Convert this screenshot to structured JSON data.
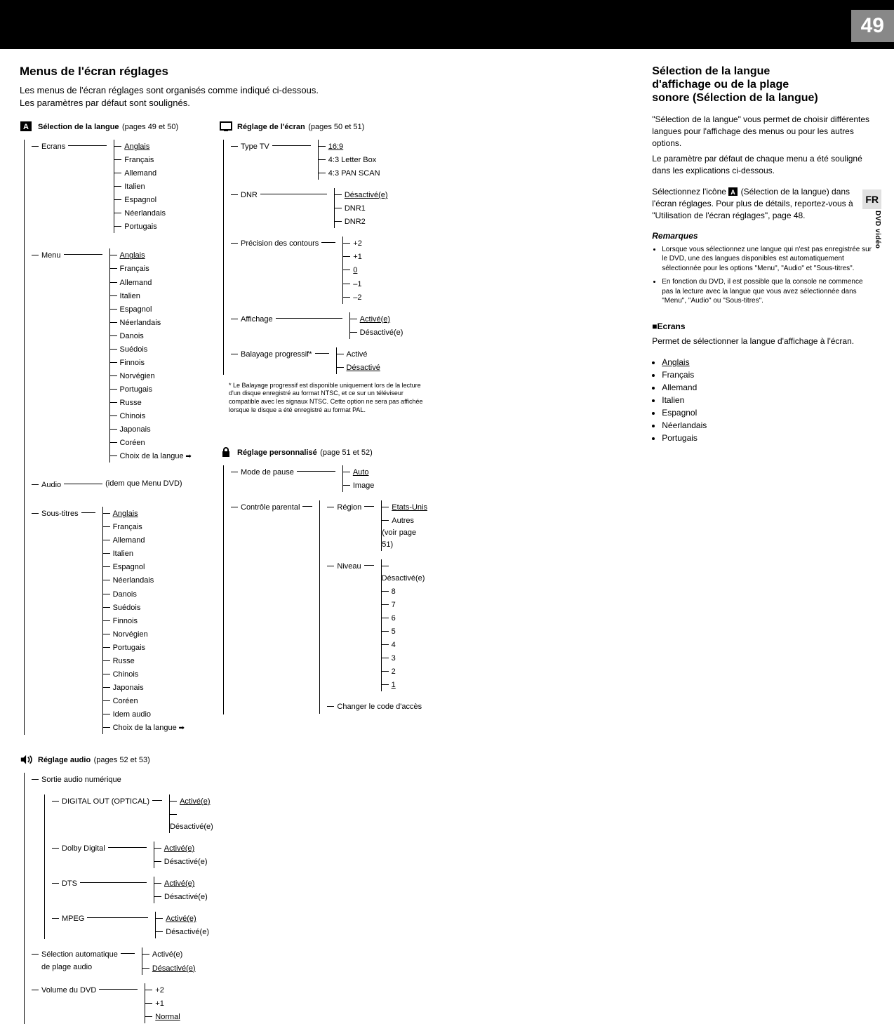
{
  "page_number": "49",
  "side_tab": "FR",
  "side_label": "DVD vidéo",
  "left": {
    "title": "Menus de l'écran réglages",
    "intro_line1": "Les menus de l'écran réglages sont organisés comme indiqué ci-dessous.",
    "intro_line2": "Les paramètres par défaut sont soulignés.",
    "section_langue": {
      "title": "Sélection de la langue",
      "pages": "(pages 49 et 50)"
    },
    "section_ecran": {
      "title": "Réglage de l'écran",
      "pages": "(pages 50 et 51)"
    },
    "section_audio": {
      "title": "Réglage audio",
      "pages": "(pages 52 et 53)"
    },
    "section_perso": {
      "title": "Réglage personnalisé",
      "pages": "(page 51 et 52)"
    },
    "langue": {
      "ecrans_label": "Ecrans",
      "ecrans": [
        "Anglais",
        "Français",
        "Allemand",
        "Italien",
        "Espagnol",
        "Néerlandais",
        "Portugais"
      ],
      "ecrans_default": 0,
      "menu_label": "Menu",
      "menu": [
        "Anglais",
        "Français",
        "Allemand",
        "Italien",
        "Espagnol",
        "Néerlandais",
        "Danois",
        "Suédois",
        "Finnois",
        "Norvégien",
        "Portugais",
        "Russe",
        "Chinois",
        "Japonais",
        "Coréen",
        "Choix de la langue"
      ],
      "menu_default": 0,
      "audio_label": "Audio",
      "audio_value": "(idem que Menu DVD)",
      "st_label": "Sous-titres",
      "st": [
        "Anglais",
        "Français",
        "Allemand",
        "Italien",
        "Espagnol",
        "Néerlandais",
        "Danois",
        "Suédois",
        "Finnois",
        "Norvégien",
        "Portugais",
        "Russe",
        "Chinois",
        "Japonais",
        "Coréen",
        "Idem audio",
        "Choix de la langue"
      ],
      "st_default": 0
    },
    "ecran": {
      "type_tv_label": "Type TV",
      "type_tv": [
        "16:9",
        "4:3 Letter Box",
        "4:3 PAN SCAN"
      ],
      "type_tv_default": 0,
      "dnr_label": "DNR",
      "dnr": [
        "Désactivé(e)",
        "DNR1",
        "DNR2"
      ],
      "dnr_default": 0,
      "precision_label": "Précision des contours",
      "precision": [
        "+2",
        "+1",
        "0",
        "–1",
        "–2"
      ],
      "precision_default": 2,
      "affichage_label": "Affichage",
      "affichage": [
        "Activé(e)",
        "Désactivé(e)"
      ],
      "affichage_default": 0,
      "balayage_label": "Balayage progressif*",
      "balayage": [
        "Activé",
        "Désactivé"
      ],
      "balayage_default": 1,
      "footnote": "Le Balayage progressif est disponible uniquement lors de la lecture d'un disque enregistré au format NTSC, et ce sur un téléviseur compatible avec les signaux NTSC. Cette option ne sera pas affichée lorsque le disque a été enregistré au format PAL."
    },
    "audio": {
      "sortie_label": "Sortie audio numérique",
      "digital_out_label": "DIGITAL OUT (OPTICAL)",
      "pair": [
        "Activé(e)",
        "Désactivé(e)"
      ],
      "dolby_label": "Dolby Digital",
      "dts_label": "DTS",
      "mpeg_label": "MPEG",
      "autoselect_label_l1": "Sélection automatique",
      "autoselect_label_l2": "de plage audio",
      "volume_label": "Volume du DVD",
      "volume": [
        "+2",
        "+1",
        "Normal"
      ],
      "volume_default": 2
    },
    "perso": {
      "pause_label": "Mode de pause",
      "pause": [
        "Auto",
        "Image"
      ],
      "pause_default": 0,
      "parental_label": "Contrôle parental",
      "region_label": "Région",
      "region": [
        "Etats-Unis",
        "Autres (voir page 51)"
      ],
      "region_default": 0,
      "niveau_label": "Niveau",
      "niveau": [
        "Désactivé(e)",
        "8",
        "7",
        "6",
        "5",
        "4",
        "3",
        "2",
        "1"
      ],
      "niveau_default": 8,
      "changer": "Changer le code d'accès"
    }
  },
  "right": {
    "h_l1": "Sélection de la langue",
    "h_l2": "d'affichage ou de la plage",
    "h_l3": "sonore (Sélection de la langue)",
    "p1": "\"Sélection de la langue\" vous permet de choisir différentes langues pour l'affichage des menus ou pour les autres options.",
    "p2": "Le paramètre par défaut de chaque menu a été souligné dans les explications ci-dessous.",
    "p3a": "Sélectionnez l'icône ",
    "p3b": " (Sélection de la langue) dans l'écran réglages. Pour plus de détails, reportez-vous à \"Utilisation de l'écran réglages\", page 48.",
    "remarques_h": "Remarques",
    "remq1": "Lorsque vous sélectionnez une langue qui n'est pas enregistrée sur le DVD, une des langues disponibles est automatiquement sélectionnée pour les options \"Menu\", \"Audio\" et \"Sous-titres\".",
    "remq2": "En fonction du DVD, il est possible que la console ne commence pas la lecture avec la langue que vous avez sélectionnée dans \"Menu\", \"Audio\" ou \"Sous-titres\".",
    "ecrans_h": "Ecrans",
    "ecrans_p": "Permet de sélectionner la langue d'affichage à l'écran.",
    "ecrans_list": [
      "Anglais",
      "Français",
      "Allemand",
      "Italien",
      "Espagnol",
      "Néerlandais",
      "Portugais"
    ],
    "ecrans_default": 0
  }
}
